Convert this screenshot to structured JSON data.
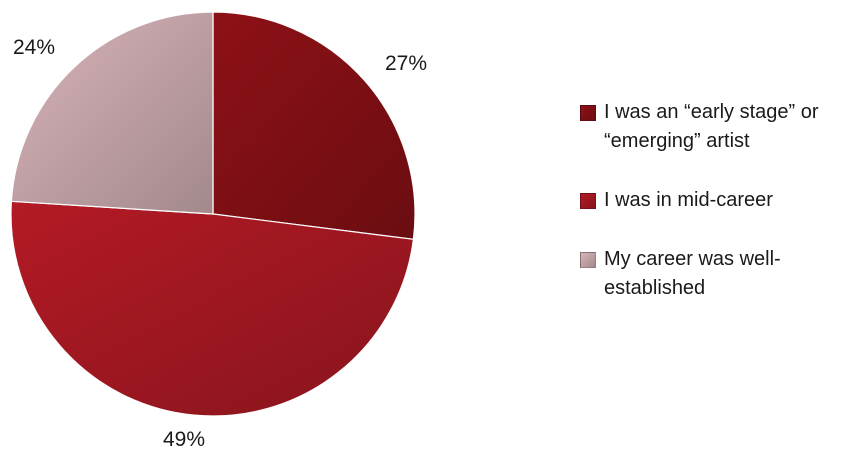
{
  "chart_data": {
    "type": "pie",
    "title": "",
    "slices": [
      {
        "label": "I was an “early stage” or “emerging” artist",
        "value": 27,
        "display": "27%",
        "color": "#7e0f14"
      },
      {
        "label": "I was in mid-career",
        "value": 49,
        "display": "49%",
        "color": "#a01721"
      },
      {
        "label": "My career was well-established",
        "value": 24,
        "display": "24%",
        "color": "#c0a1a5"
      }
    ],
    "start_angle_deg": 0,
    "direction": "clockwise",
    "legend_position": "right"
  }
}
